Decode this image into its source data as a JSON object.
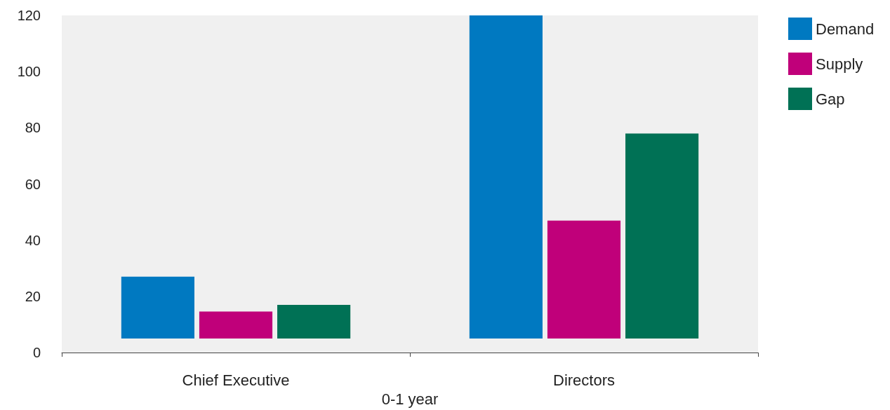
{
  "chart_data": {
    "type": "bar",
    "xlabel": "0-1 year",
    "categories": [
      "Chief Executive",
      "Directors"
    ],
    "series": [
      {
        "name": "Demand",
        "color": "#0079c1",
        "base": [
          5,
          5
        ],
        "values": [
          22,
          115
        ]
      },
      {
        "name": "Supply",
        "color": "#c0007a",
        "base": [
          5,
          5
        ],
        "values": [
          9.6,
          42
        ]
      },
      {
        "name": "Gap",
        "color": "#007155",
        "base": [
          5,
          5
        ],
        "values": [
          12,
          73
        ]
      }
    ],
    "ylim": [
      0,
      120
    ],
    "yticks": [
      0,
      20,
      40,
      60,
      80,
      100,
      120
    ],
    "grid": false,
    "legend": "right"
  }
}
